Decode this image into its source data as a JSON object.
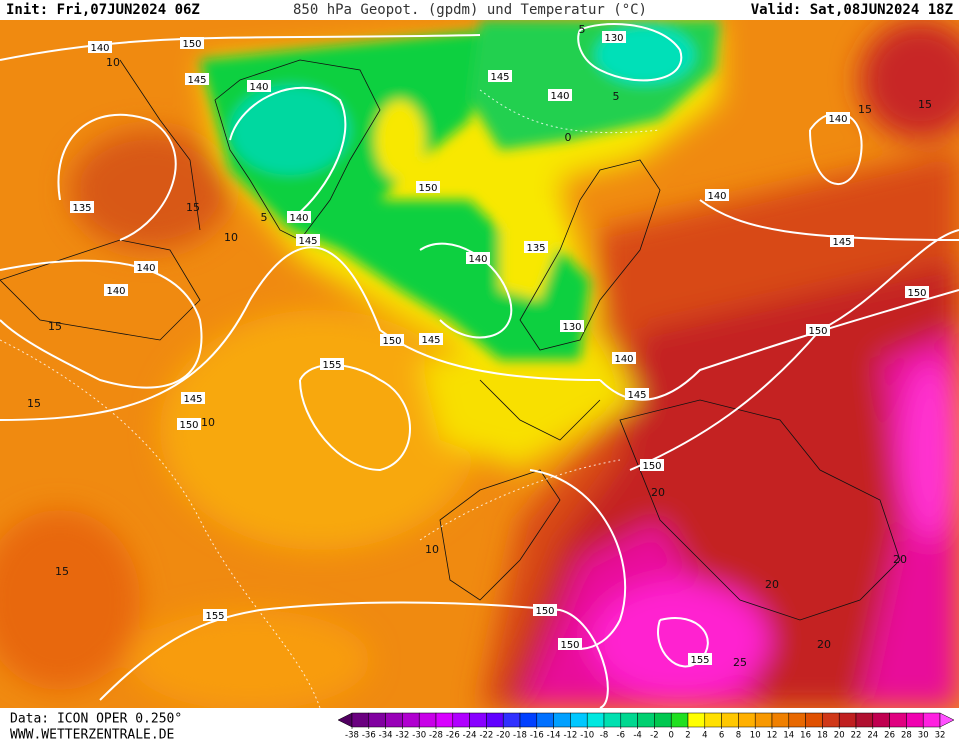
{
  "header": {
    "init": "Init: Fri,07JUN2024 06Z",
    "title": "850 hPa Geopot. (gpdm) und Temperatur (°C)",
    "valid": "Valid: Sat,08JUN2024 18Z"
  },
  "footer": {
    "data_source": "Data: ICON OPER 0.250°",
    "website": "WWW.WETTERZENTRALE.DE"
  },
  "map": {
    "geopotential_labels": [
      140,
      150,
      145,
      140,
      130,
      145,
      140,
      140,
      135,
      150,
      140,
      145,
      140,
      140,
      140,
      135,
      140,
      145,
      150,
      130,
      150,
      145,
      140,
      150,
      155,
      145,
      150,
      145,
      150,
      150,
      155,
      150,
      155
    ],
    "temperature_labels": [
      10,
      5,
      5,
      0,
      5,
      10,
      15,
      15,
      15,
      10,
      10,
      15,
      20,
      20,
      25,
      20,
      20,
      15,
      15
    ]
  },
  "colorbar": {
    "ticks": [
      -38,
      -36,
      -34,
      -32,
      -30,
      -28,
      -26,
      -24,
      -22,
      -20,
      -18,
      -16,
      -14,
      -12,
      -10,
      -8,
      -6,
      -4,
      -2,
      0,
      2,
      4,
      6,
      8,
      10,
      12,
      14,
      16,
      18,
      20,
      22,
      24,
      26,
      28,
      30,
      32
    ],
    "colors": [
      "#500060",
      "#6a0080",
      "#8000a0",
      "#9800b8",
      "#b000d0",
      "#c800e8",
      "#d800ff",
      "#b000ff",
      "#8800ff",
      "#6000ff",
      "#3030ff",
      "#0040ff",
      "#0070ff",
      "#00a0ff",
      "#00c8ff",
      "#00e8e0",
      "#00e0b0",
      "#00d890",
      "#00d070",
      "#00c850",
      "#20e020",
      "#ffff00",
      "#ffe000",
      "#ffc800",
      "#ffb000",
      "#f89800",
      "#f08000",
      "#e86800",
      "#e05000",
      "#d03818",
      "#c02020",
      "#b01030",
      "#c00050",
      "#e00080",
      "#f000b0",
      "#ff20e0",
      "#ff50ff"
    ]
  }
}
